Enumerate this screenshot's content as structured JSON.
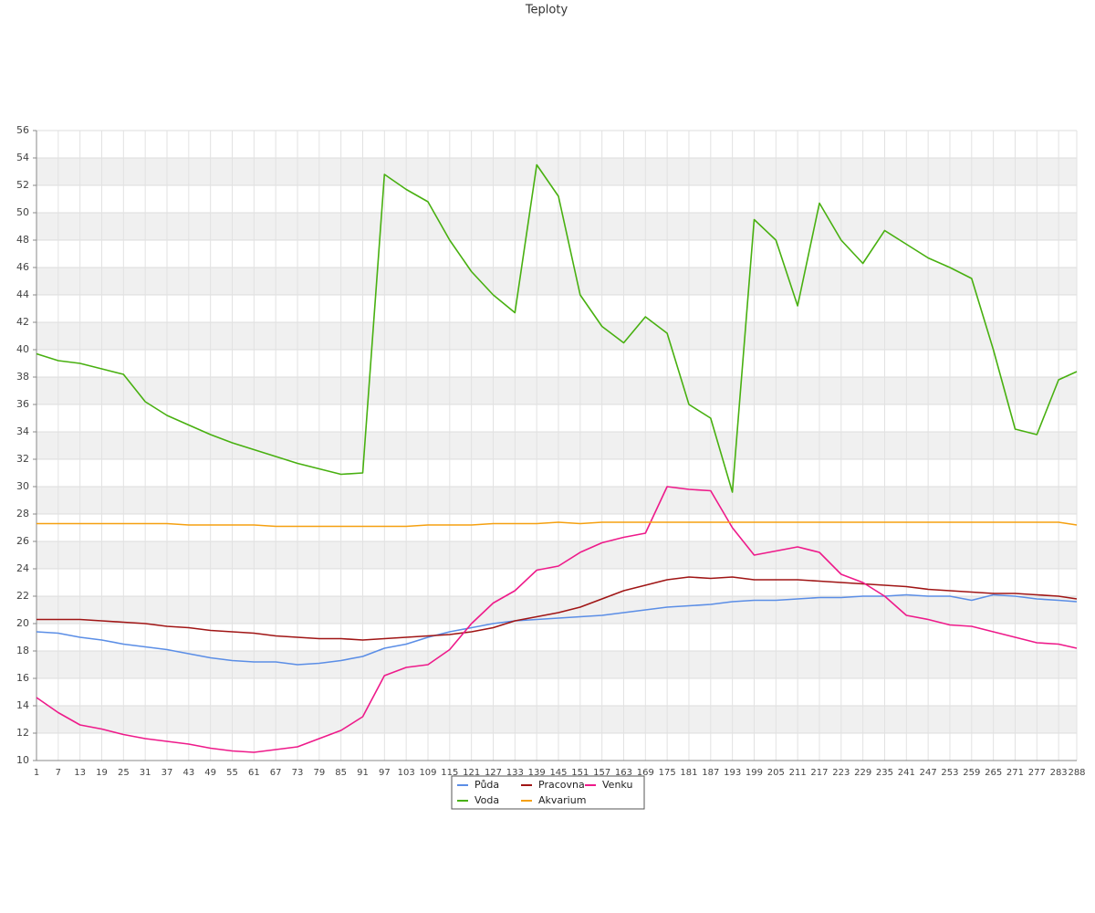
{
  "chart_data": {
    "type": "line",
    "title": "Teploty",
    "x": [
      1,
      7,
      13,
      19,
      25,
      31,
      37,
      43,
      49,
      55,
      61,
      67,
      73,
      79,
      85,
      91,
      97,
      103,
      109,
      115,
      121,
      127,
      133,
      139,
      145,
      151,
      157,
      163,
      169,
      175,
      181,
      187,
      193,
      199,
      205,
      211,
      217,
      223,
      229,
      235,
      241,
      247,
      253,
      259,
      265,
      271,
      277,
      283,
      288
    ],
    "xlim": [
      1,
      288
    ],
    "ylim": [
      10,
      56
    ],
    "yticks": [
      10,
      12,
      14,
      16,
      18,
      20,
      22,
      24,
      26,
      28,
      30,
      32,
      34,
      36,
      38,
      40,
      42,
      44,
      46,
      48,
      50,
      52,
      54,
      56
    ],
    "grid": true,
    "legend": "bottom",
    "series": [
      {
        "name": "Půda",
        "color": "#5b8ee6",
        "values": [
          19.4,
          19.3,
          19.0,
          18.8,
          18.5,
          18.3,
          18.1,
          17.8,
          17.5,
          17.3,
          17.2,
          17.2,
          17.0,
          17.1,
          17.3,
          17.6,
          18.2,
          18.5,
          19.0,
          19.4,
          19.7,
          20.0,
          20.2,
          20.3,
          20.4,
          20.5,
          20.6,
          20.8,
          21.0,
          21.2,
          21.3,
          21.4,
          21.6,
          21.7,
          21.7,
          21.8,
          21.9,
          21.9,
          22.0,
          22.0,
          22.1,
          22.0,
          22.0,
          21.7,
          22.1,
          22.0,
          21.8,
          21.7,
          21.6
        ]
      },
      {
        "name": "Pracovna",
        "color": "#a01515",
        "values": [
          20.3,
          20.3,
          20.3,
          20.2,
          20.1,
          20.0,
          19.8,
          19.7,
          19.5,
          19.4,
          19.3,
          19.1,
          19.0,
          18.9,
          18.9,
          18.8,
          18.9,
          19.0,
          19.1,
          19.2,
          19.4,
          19.7,
          20.2,
          20.5,
          20.8,
          21.2,
          21.8,
          22.4,
          22.8,
          23.2,
          23.4,
          23.3,
          23.4,
          23.2,
          23.2,
          23.2,
          23.1,
          23.0,
          22.9,
          22.8,
          22.7,
          22.5,
          22.4,
          22.3,
          22.2,
          22.2,
          22.1,
          22.0,
          21.8
        ]
      },
      {
        "name": "Venku",
        "color": "#ee1a8a",
        "values": [
          14.6,
          13.5,
          12.6,
          12.3,
          11.9,
          11.6,
          11.4,
          11.2,
          10.9,
          10.7,
          10.6,
          10.8,
          11.0,
          11.6,
          12.2,
          13.2,
          16.2,
          16.8,
          17.0,
          18.1,
          20.0,
          21.5,
          22.4,
          23.9,
          24.2,
          25.2,
          25.9,
          26.3,
          26.6,
          30.0,
          29.8,
          29.7,
          27.0,
          25.0,
          25.3,
          25.6,
          25.2,
          23.6,
          23.0,
          22.0,
          20.6,
          20.3,
          19.9,
          19.8,
          19.4,
          19.0,
          18.6,
          18.5,
          18.2
        ]
      },
      {
        "name": "Voda",
        "color": "#48b010",
        "values": [
          39.7,
          39.2,
          39.0,
          38.6,
          38.2,
          36.2,
          35.2,
          34.5,
          33.8,
          33.2,
          32.7,
          32.2,
          31.7,
          31.3,
          30.9,
          31.0,
          52.8,
          51.7,
          50.8,
          48.0,
          45.7,
          44.0,
          42.7,
          53.5,
          51.2,
          44.0,
          41.7,
          40.5,
          42.4,
          41.2,
          36.0,
          35.0,
          29.6,
          49.5,
          48.0,
          43.2,
          50.7,
          48.0,
          46.3,
          48.7,
          47.7,
          46.7,
          46.0,
          45.2,
          40.0,
          34.2,
          33.8,
          37.8,
          38.4
        ]
      },
      {
        "name": "Akvarium",
        "color": "#f5a010",
        "values": [
          27.3,
          27.3,
          27.3,
          27.3,
          27.3,
          27.3,
          27.3,
          27.2,
          27.2,
          27.2,
          27.2,
          27.1,
          27.1,
          27.1,
          27.1,
          27.1,
          27.1,
          27.1,
          27.2,
          27.2,
          27.2,
          27.3,
          27.3,
          27.3,
          27.4,
          27.3,
          27.4,
          27.4,
          27.4,
          27.4,
          27.4,
          27.4,
          27.4,
          27.4,
          27.4,
          27.4,
          27.4,
          27.4,
          27.4,
          27.4,
          27.4,
          27.4,
          27.4,
          27.4,
          27.4,
          27.4,
          27.4,
          27.4,
          27.2
        ]
      }
    ]
  }
}
